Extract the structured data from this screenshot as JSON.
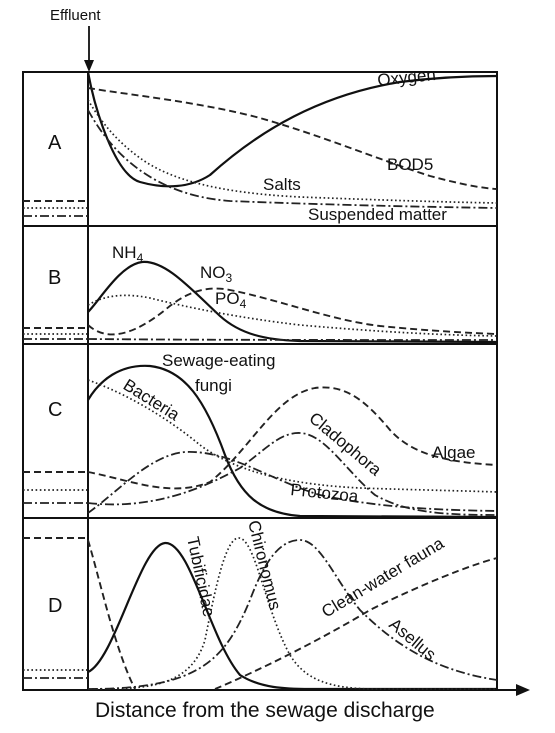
{
  "effluent_label": "Effluent",
  "x_axis_label": "Distance from the sewage discharge",
  "panels": [
    {
      "id": "A",
      "labels": [
        "Oxygen",
        "BOD5",
        "Salts",
        "Suspended matter"
      ]
    },
    {
      "id": "B",
      "labels": [
        "NH4",
        "NO3",
        "PO4"
      ]
    },
    {
      "id": "C",
      "labels": [
        "Sewage-eating fungi",
        "Bacteria",
        "Cladophora",
        "Algae",
        "Protozoa"
      ]
    },
    {
      "id": "D",
      "labels": [
        "Tubificidae",
        "Chironomus",
        "Clean-water fauna",
        "Asellus"
      ]
    }
  ],
  "text": {
    "panel_a": "A",
    "panel_b": "B",
    "panel_c": "C",
    "panel_d": "D",
    "oxygen": "Oxygen",
    "bod5": "BOD5",
    "salts": "Salts",
    "suspended": "Suspended matter",
    "nh": "NH",
    "nh_sub": "4",
    "no": "NO",
    "no_sub": "3",
    "po": "PO",
    "po_sub": "4",
    "fungi_line1": "Sewage-eating",
    "fungi_line2": "fungi",
    "bacteria": "Bacteria",
    "cladophora": "Cladophora",
    "algae": "Algae",
    "protozoa": "Protozoa",
    "tubificidae": "Tubificidae",
    "chironomus": "Chironomus",
    "clean_water": "Clean-water fauna",
    "asellus": "Asellus"
  },
  "line_styles": {
    "solid": "#111111",
    "dashed": "#222222",
    "dotted": "#222222",
    "dash-dot": "#222222"
  }
}
